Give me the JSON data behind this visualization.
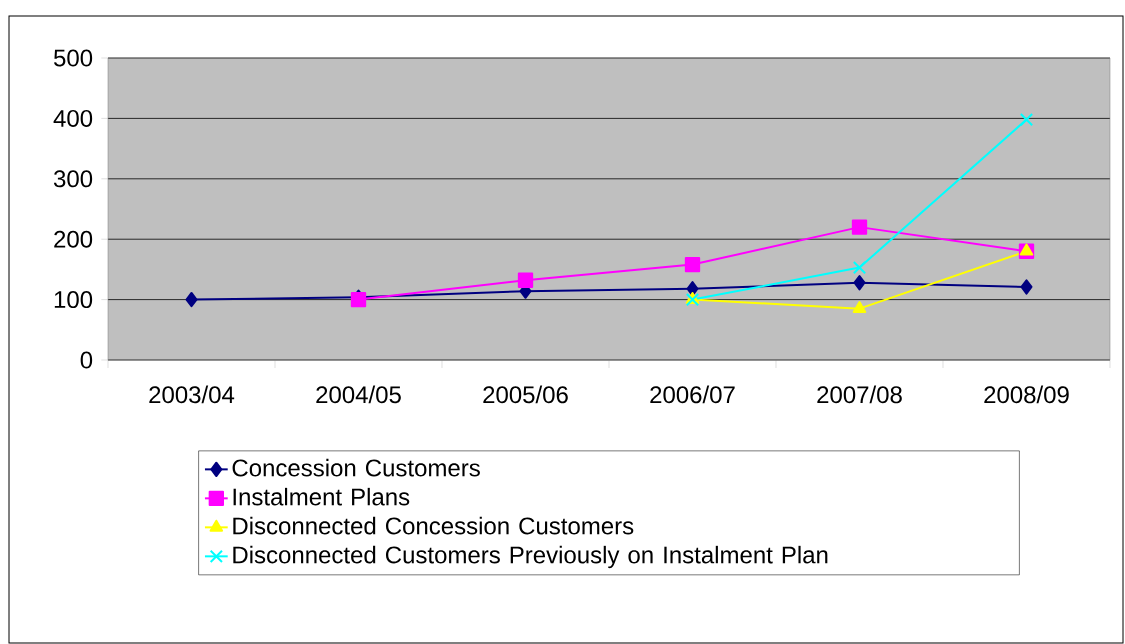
{
  "chart_data": {
    "type": "line",
    "categories": [
      "2003/04",
      "2004/05",
      "2005/06",
      "2006/07",
      "2007/08",
      "2008/09"
    ],
    "series": [
      {
        "name": "Concession Customers",
        "color": "#000080",
        "marker": "diamond",
        "values": [
          100,
          104,
          114,
          118,
          128,
          121
        ]
      },
      {
        "name": "Instalment Plans",
        "color": "#ff00ff",
        "marker": "square",
        "values": [
          null,
          100,
          132,
          158,
          220,
          180
        ]
      },
      {
        "name": "Disconnected Concession Customers",
        "color": "#ffff00",
        "marker": "triangle",
        "values": [
          null,
          null,
          null,
          100,
          85,
          180
        ]
      },
      {
        "name": "Disconnected Customers Previously on Instalment Plan",
        "color": "#00ffff",
        "marker": "cross",
        "values": [
          null,
          null,
          null,
          100,
          153,
          398
        ]
      }
    ],
    "ylim": [
      0,
      500
    ],
    "yticks": [
      0,
      100,
      200,
      300,
      400,
      500
    ],
    "grid": "y",
    "legend": "bottom",
    "line_style": "solid"
  }
}
